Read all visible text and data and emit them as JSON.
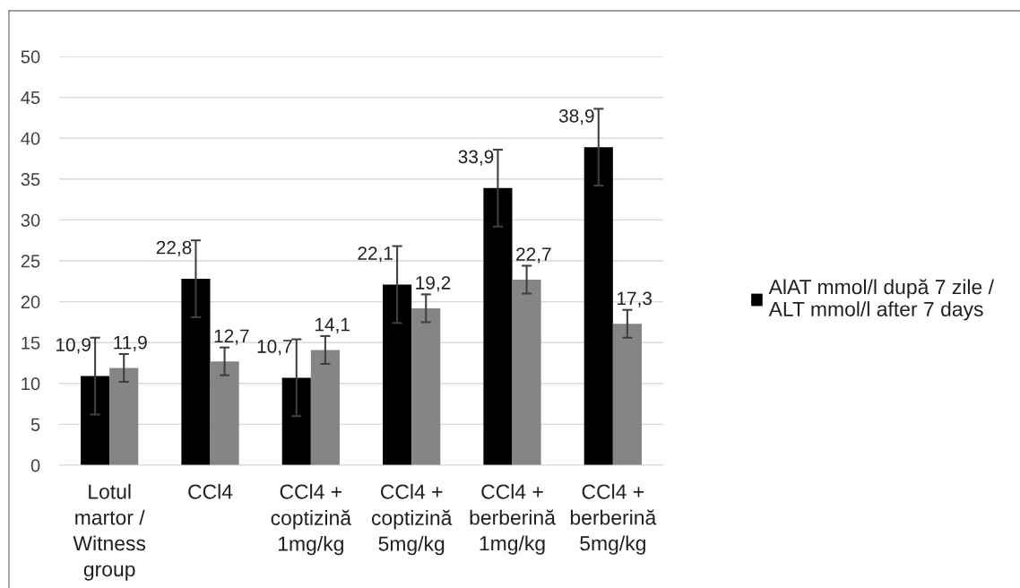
{
  "chart_data": {
    "type": "bar",
    "categories": [
      "Lotul\nmartor /\nWitness\ngroup",
      "CCl4",
      "CCl4 +\ncoptizină\n1mg/kg",
      "CCl4 +\ncoptizină\n5mg/kg",
      "CCl4 +\nberberină\n1mg/kg",
      "CCl4 +\nberberină\n5mg/kg"
    ],
    "series": [
      {
        "name": "AlAT mmol/l după 7 zile /\nALT mmol/l after 7 days",
        "color": "#000000",
        "values": [
          10.9,
          22.8,
          10.7,
          22.1,
          33.9,
          38.9
        ],
        "errors": [
          4.7,
          4.7,
          4.7,
          4.7,
          4.7,
          4.7
        ],
        "value_labels": [
          "10,9",
          "22,8",
          "10,7",
          "22,1",
          "33,9",
          "38,9"
        ]
      },
      {
        "color": "#858585",
        "values": [
          11.9,
          12.7,
          14.1,
          19.2,
          22.7,
          17.3
        ],
        "errors": [
          1.7,
          1.7,
          1.7,
          1.7,
          1.7,
          1.7
        ],
        "value_labels": [
          "11,9",
          "12,7",
          "14,1",
          "19,2",
          "22,7",
          "17,3"
        ]
      }
    ],
    "ylim": [
      0,
      50
    ],
    "yticks": [
      0,
      5,
      10,
      15,
      20,
      25,
      30,
      35,
      40,
      45,
      50
    ],
    "grid": "y",
    "legend": "right"
  }
}
